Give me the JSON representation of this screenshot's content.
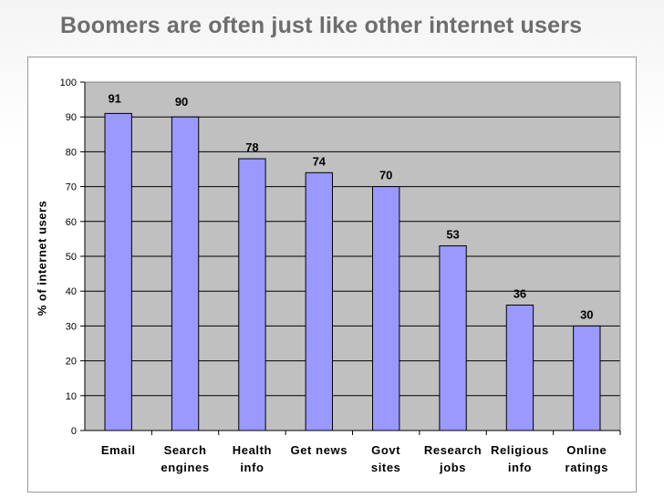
{
  "title": "Boomers are often just like other internet users",
  "chart_data": {
    "type": "bar",
    "title": "",
    "xlabel": "",
    "ylabel": "% of internet users",
    "ylim": [
      0,
      100
    ],
    "yticks": [
      0,
      10,
      20,
      30,
      40,
      50,
      60,
      70,
      80,
      90,
      100
    ],
    "categories": [
      [
        "Email"
      ],
      [
        "Search",
        "engines"
      ],
      [
        "Health",
        "info"
      ],
      [
        "Get news"
      ],
      [
        "Govt",
        "sites"
      ],
      [
        "Research",
        "jobs"
      ],
      [
        "Religious",
        "info"
      ],
      [
        "Online",
        "ratings"
      ]
    ],
    "values": [
      91,
      90,
      78,
      74,
      70,
      53,
      36,
      30
    ],
    "grid": true,
    "legend": "none",
    "colors": {
      "bar": "#9999ff",
      "plot_bg": "#c0c0c0",
      "gridline": "#000000"
    }
  }
}
